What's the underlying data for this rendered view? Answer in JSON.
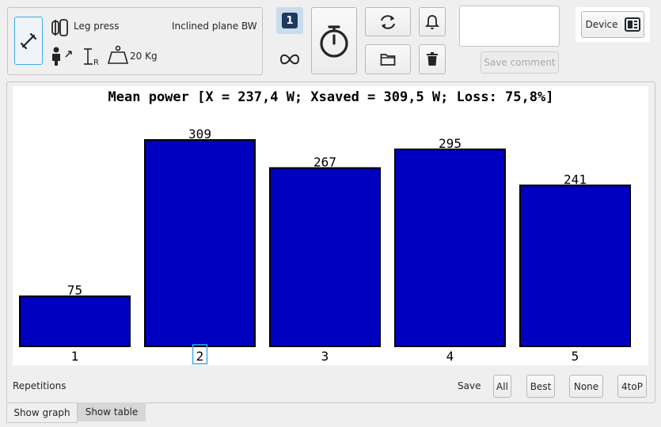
{
  "top": {
    "exercise": "Leg press",
    "encoder_config": "Inclined plane BW",
    "weight": "20 Kg",
    "capture_mode_badge": "1",
    "comment_text": "",
    "save_comment_label": "Save comment",
    "device_label": "Device"
  },
  "chart_data": {
    "type": "bar",
    "title": "Mean power [X = 237,4 W; Xsaved = 309,5 W; Loss: 75,8%]",
    "categories": [
      "1",
      "2",
      "3",
      "4",
      "5"
    ],
    "values": [
      75,
      309,
      267,
      295,
      241
    ],
    "value_labels": [
      "75",
      "309",
      "267",
      "295",
      "241"
    ],
    "ylim": [
      0,
      309
    ],
    "bar_color": "#0000c0",
    "highlighted_category": "2"
  },
  "bottom": {
    "repetitions_label": "Repetitions",
    "save_label": "Save",
    "all_label": "All",
    "best_label": "Best",
    "none_label": "None",
    "fourtop_label": "4toP"
  },
  "tabs": [
    {
      "label": "Show graph",
      "active": true
    },
    {
      "label": "Show table",
      "active": false
    }
  ],
  "colors": {
    "accent": "#3daee9",
    "badge_bg": "#1d3a5e",
    "bar": "#0000c0"
  }
}
